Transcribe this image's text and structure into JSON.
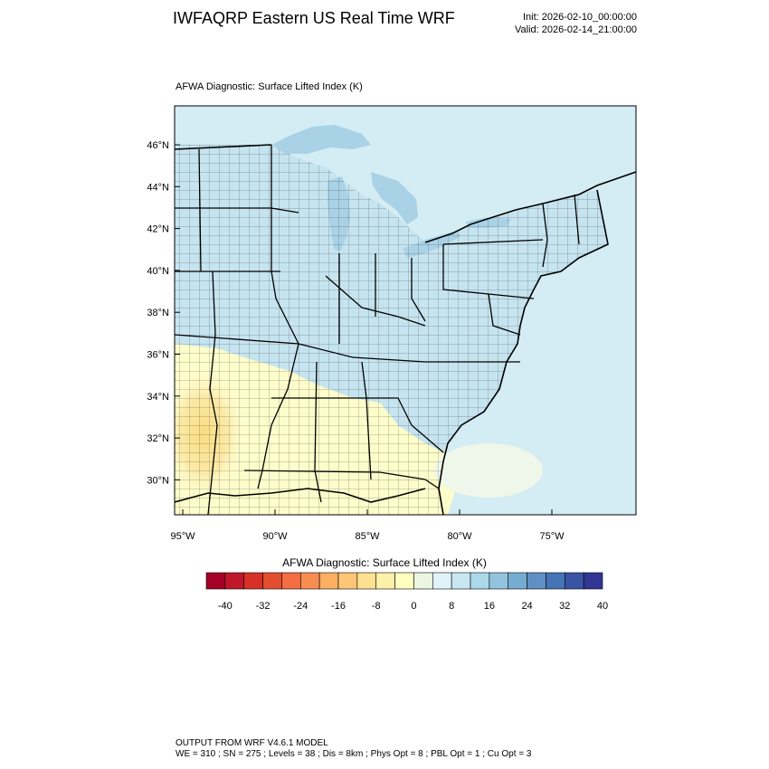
{
  "header": {
    "title": "IWFAQRP Eastern US Real Time WRF",
    "init": "Init: 2026-02-10_00:00:00",
    "valid": "Valid: 2026-02-14_21:00:00"
  },
  "map": {
    "subtitle": "AFWA Diagnostic: Surface Lifted Index   (K)",
    "lat_labels": [
      "46°N",
      "44°N",
      "42°N",
      "40°N",
      "38°N",
      "36°N",
      "34°N",
      "32°N",
      "30°N"
    ],
    "lon_labels": [
      "95°W",
      "90°W",
      "85°W",
      "80°W",
      "75°W"
    ],
    "colors": {
      "land_cool": "#c6e4ef",
      "water_cool": "#d4ecf3",
      "lake": "#a9d2e6",
      "warm_light": "#fdfccb",
      "warm_mid": "#fbe79a",
      "neutral": "#eef7ea"
    }
  },
  "colorbar": {
    "title": "AFWA Diagnostic: Surface Lifted Index  (K)",
    "labels": [
      "-40",
      "-32",
      "-24",
      "-16",
      "-8",
      "0",
      "8",
      "16",
      "24",
      "32",
      "40"
    ],
    "colors": [
      "#a50026",
      "#c0182a",
      "#d73027",
      "#e44e30",
      "#f46d43",
      "#f88d52",
      "#fdae61",
      "#fdc676",
      "#fee090",
      "#fdf0a8",
      "#ffffbf",
      "#eaf6e2",
      "#e0f3f8",
      "#c9e7f1",
      "#abd9e9",
      "#93c4dd",
      "#74add1",
      "#5f8fc4",
      "#4575b4",
      "#3a54a4",
      "#313695"
    ]
  },
  "footer": {
    "model": "OUTPUT FROM WRF V4.6.1 MODEL",
    "config": "WE = 310 ; SN = 275 ; Levels = 38 ; Dis = 8km ; Phys Opt = 8 ; PBL Opt = 1 ; Cu Opt = 3"
  }
}
